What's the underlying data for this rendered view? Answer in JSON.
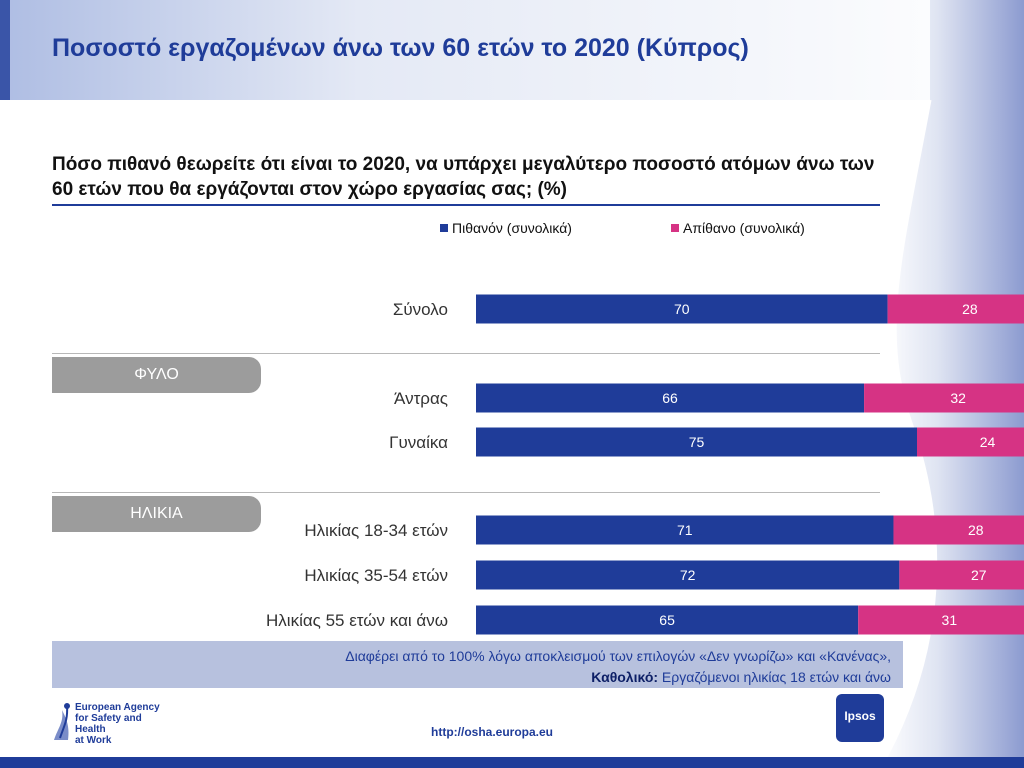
{
  "title": "Ποσοστό εργαζομένων άνω των 60 ετών το 2020 (Κύπρος)",
  "question": "Πόσο πιθανό θεωρείτε ότι είναι το 2020, να υπάρχει μεγαλύτερο ποσοστό ατόμων άνω των 60 ετών που θα εργάζονται στον χώρο εργασίας σας; (%)",
  "colors": {
    "likely": "#1f3c99",
    "unlikely": "#d63384",
    "accent": "#1f3c99",
    "section_tag": "#9c9c9c"
  },
  "sections": {
    "gender": "ΦΥΛΟ",
    "age": "ΗΛΙΚΙΑ"
  },
  "chart_data": {
    "type": "bar",
    "orientation": "horizontal",
    "stacked": true,
    "categories": [
      "Σύνολο",
      "Άντρας",
      "Γυναίκα",
      "Ηλικίας 18-34 ετών",
      "Ηλικίας 35-54 ετών",
      "Ηλικίας 55 ετών και άνω"
    ],
    "series": [
      {
        "name": "Πιθανόν (συνολικά)",
        "values": [
          70,
          66,
          75,
          71,
          72,
          65
        ]
      },
      {
        "name": "Απίθανο (συνολικά)",
        "values": [
          28,
          32,
          24,
          28,
          27,
          31
        ]
      }
    ],
    "xlim": [
      0,
      100
    ],
    "legend": "top"
  },
  "footnote": {
    "line1": "Διαφέρει από το 100% λόγω αποκλεισμού των επιλογών «Δεν γνωρίζω» και «Κανένας»,",
    "line2_bold": "Καθολικό:",
    "line2": " Εργαζόμενοι ηλικίας 18 ετών και άνω"
  },
  "agency": {
    "line1": "European Agency",
    "line2": "for Safety and Health",
    "line3": "at Work"
  },
  "url": "http://osha.europa.eu",
  "ipsos": "Ipsos"
}
